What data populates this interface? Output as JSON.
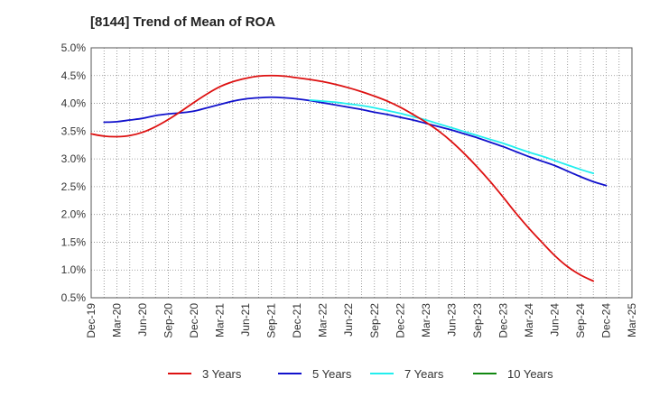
{
  "chart_data": {
    "type": "line",
    "title": "[8144]  Trend of Mean of ROA",
    "xlabel": "",
    "ylabel": "",
    "ylim": [
      0.5,
      5.0
    ],
    "yticks": [
      "0.5%",
      "1.0%",
      "1.5%",
      "2.0%",
      "2.5%",
      "3.0%",
      "3.5%",
      "4.0%",
      "4.5%",
      "5.0%"
    ],
    "ytick_values": [
      0.5,
      1.0,
      1.5,
      2.0,
      2.5,
      3.0,
      3.5,
      4.0,
      4.5,
      5.0
    ],
    "xticks": [
      "Dec-19",
      "Mar-20",
      "Jun-20",
      "Sep-20",
      "Dec-20",
      "Mar-21",
      "Jun-21",
      "Sep-21",
      "Dec-21",
      "Mar-22",
      "Jun-22",
      "Sep-22",
      "Dec-22",
      "Mar-23",
      "Jun-23",
      "Sep-23",
      "Dec-23",
      "Mar-24",
      "Jun-24",
      "Sep-24",
      "Dec-24",
      "Mar-25"
    ],
    "grid": true,
    "legend_position": "bottom",
    "series": [
      {
        "name": "3 Years",
        "color": "#dd1111",
        "start_index": 0,
        "values": [
          3.45,
          3.41,
          3.4,
          3.42,
          3.48,
          3.58,
          3.71,
          3.86,
          4.02,
          4.17,
          4.3,
          4.39,
          4.45,
          4.49,
          4.5,
          4.49,
          4.46,
          4.43,
          4.39,
          4.34,
          4.28,
          4.21,
          4.13,
          4.04,
          3.93,
          3.8,
          3.66,
          3.5,
          3.31,
          3.09,
          2.85,
          2.59,
          2.31,
          2.02,
          1.75,
          1.5,
          1.26,
          1.06,
          0.91,
          0.8
        ]
      },
      {
        "name": "5 Years",
        "color": "#1111cc",
        "start_index": 1,
        "values": [
          3.66,
          3.67,
          3.7,
          3.73,
          3.78,
          3.81,
          3.83,
          3.86,
          3.92,
          3.98,
          4.04,
          4.08,
          4.1,
          4.11,
          4.1,
          4.08,
          4.05,
          4.01,
          3.97,
          3.93,
          3.89,
          3.84,
          3.8,
          3.75,
          3.7,
          3.64,
          3.58,
          3.52,
          3.45,
          3.38,
          3.3,
          3.22,
          3.13,
          3.04,
          2.96,
          2.88,
          2.78,
          2.68,
          2.59,
          2.52
        ]
      },
      {
        "name": "7 Years",
        "color": "#22eeee",
        "start_index": 17,
        "values": [
          4.06,
          4.04,
          4.02,
          3.99,
          3.96,
          3.92,
          3.87,
          3.82,
          3.76,
          3.7,
          3.63,
          3.56,
          3.49,
          3.42,
          3.35,
          3.28,
          3.2,
          3.12,
          3.05,
          2.97,
          2.89,
          2.81,
          2.74
        ]
      },
      {
        "name": "10 Years",
        "color": "#118811",
        "start_index": 0,
        "values": []
      }
    ]
  }
}
